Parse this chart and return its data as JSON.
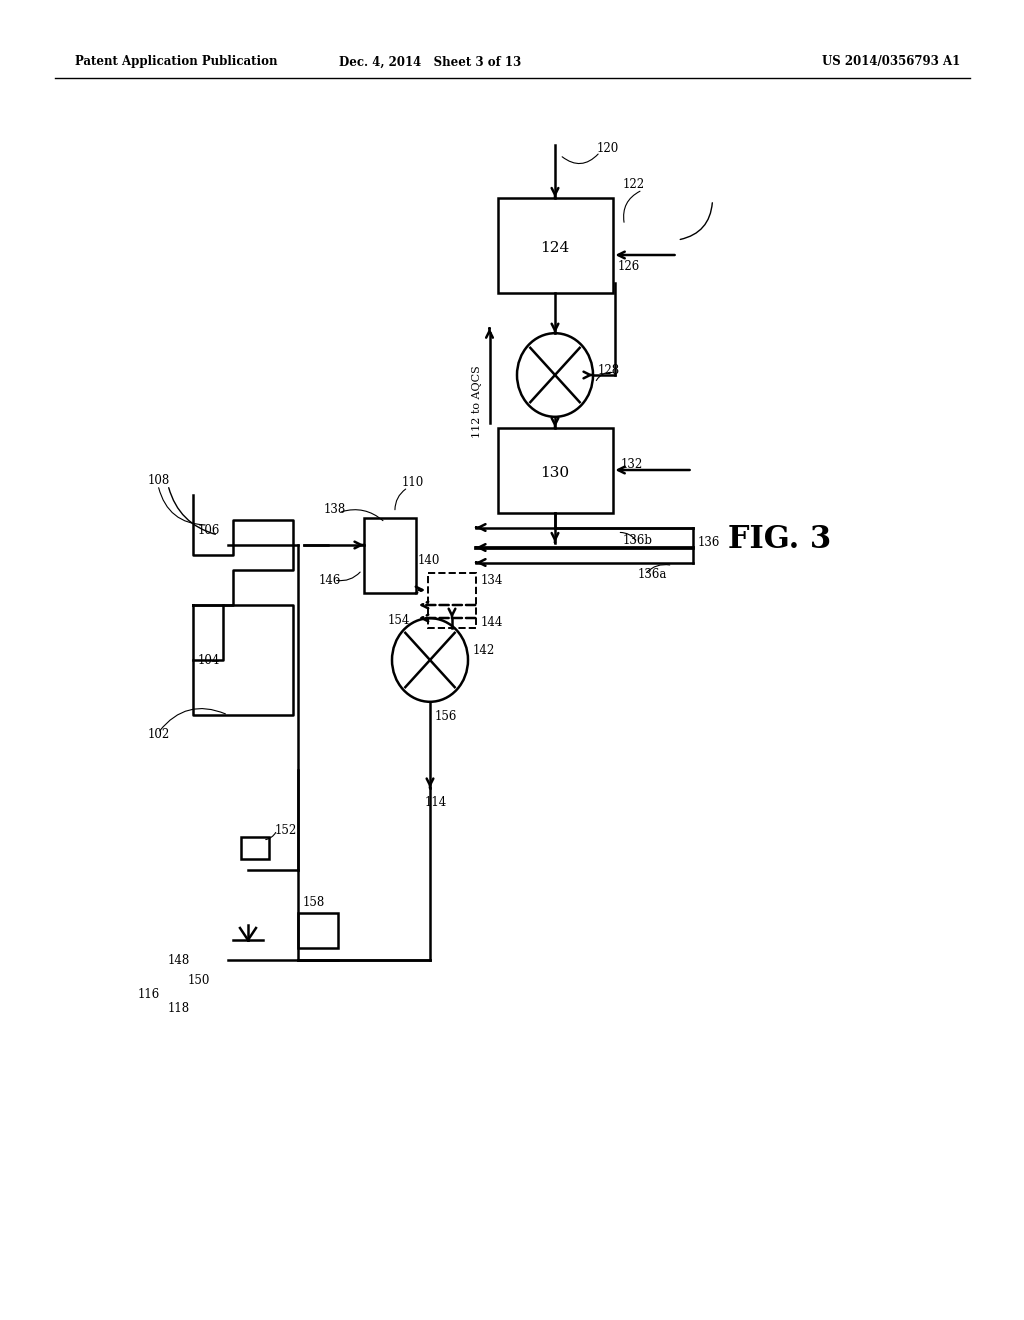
{
  "bg_color": "#ffffff",
  "line_color": "#000000",
  "header_left": "Patent Application Publication",
  "header_mid": "Dec. 4, 2014   Sheet 3 of 13",
  "header_right": "US 2014/0356793 A1",
  "fig_label": "FIG. 3",
  "lw": 1.8
}
